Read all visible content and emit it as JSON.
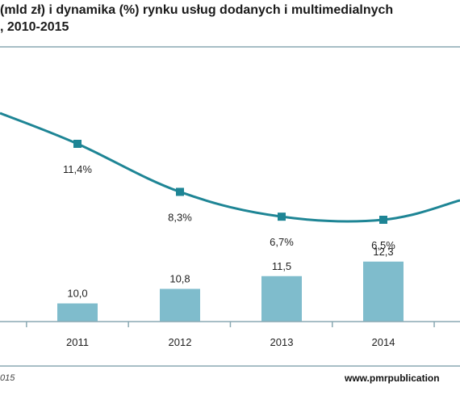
{
  "title_line1": "(mld zł) i dynamika (%) rynku usług dodanych i multimedialnych",
  "title_line2": ", 2010-2015",
  "source_text": "015",
  "website": "www.pmrpublication",
  "colors": {
    "bar": "#7fbccc",
    "line": "#1e8595",
    "frame": "#8aa9b3"
  },
  "chart_data": {
    "type": "bar",
    "categories": [
      "2011",
      "2012",
      "2013",
      "2014"
    ],
    "series": [
      {
        "type": "bar",
        "values": [
          10.0,
          10.8,
          11.5,
          12.3
        ],
        "labels": [
          "10,0",
          "10,8",
          "11,5",
          "12,3"
        ]
      },
      {
        "type": "line",
        "values": [
          11.4,
          8.3,
          6.7,
          6.5
        ],
        "labels": [
          "11,4%",
          "8,3%",
          "6,7%",
          "6,5%"
        ]
      }
    ],
    "xlabel": "",
    "ylabel": "",
    "grid": false
  }
}
